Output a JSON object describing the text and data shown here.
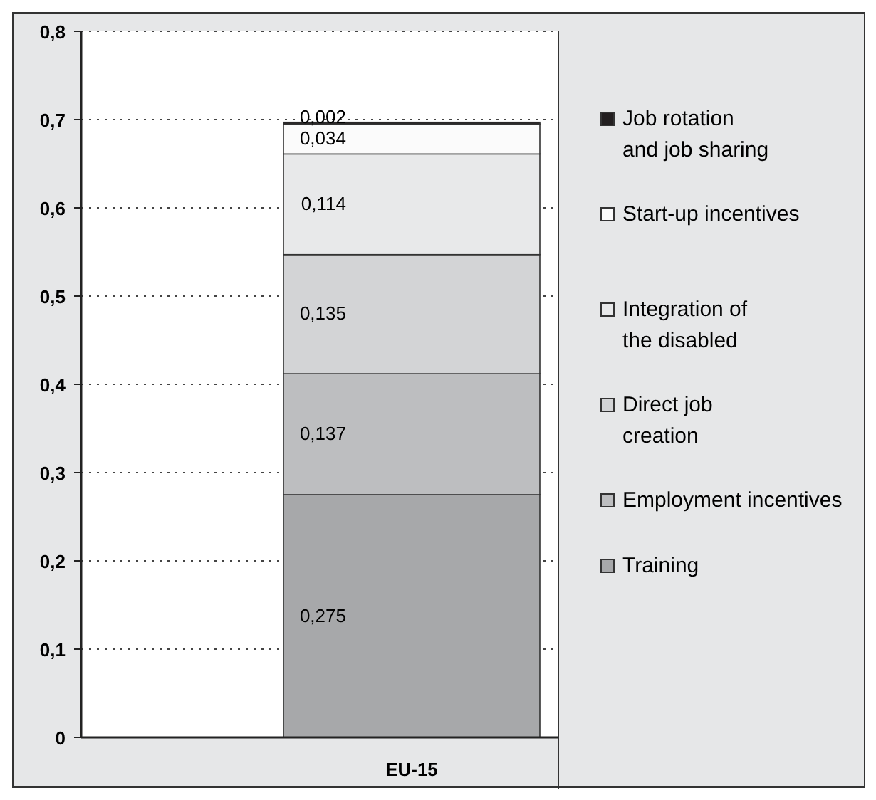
{
  "chart_data": {
    "type": "bar",
    "stacked": true,
    "categories": [
      "EU-15"
    ],
    "series": [
      {
        "name": "Training",
        "color": "#a7a8aa",
        "values": [
          0.275
        ],
        "value_labels": [
          "0,275"
        ]
      },
      {
        "name": "Employment incentives",
        "color": "#bdbec0",
        "values": [
          0.137
        ],
        "value_labels": [
          "0,137"
        ]
      },
      {
        "name": "Direct job\ncreation",
        "color": "#d3d4d6",
        "values": [
          0.135
        ],
        "value_labels": [
          "0,135"
        ]
      },
      {
        "name": "Integration of\nthe disabled",
        "color": "#e8e9ea",
        "values": [
          0.114
        ],
        "value_labels": [
          "0,114"
        ]
      },
      {
        "name": "Start-up incentives",
        "color": "#fbfbfb",
        "values": [
          0.034
        ],
        "value_labels": [
          "0,034"
        ]
      },
      {
        "name": "Job rotation\nand job sharing",
        "color": "#231f20",
        "values": [
          0.002
        ],
        "value_labels": [
          "0,002"
        ]
      }
    ],
    "ylim": [
      0,
      0.8
    ],
    "yticks": [
      {
        "value": 0,
        "label": "0"
      },
      {
        "value": 0.1,
        "label": "0,1"
      },
      {
        "value": 0.2,
        "label": "0,2"
      },
      {
        "value": 0.3,
        "label": "0,3"
      },
      {
        "value": 0.4,
        "label": "0,4"
      },
      {
        "value": 0.5,
        "label": "0,5"
      },
      {
        "value": 0.6,
        "label": "0,6"
      },
      {
        "value": 0.7,
        "label": "0,7"
      },
      {
        "value": 0.8,
        "label": "0,8"
      }
    ],
    "grid": "y",
    "legend": "right"
  }
}
